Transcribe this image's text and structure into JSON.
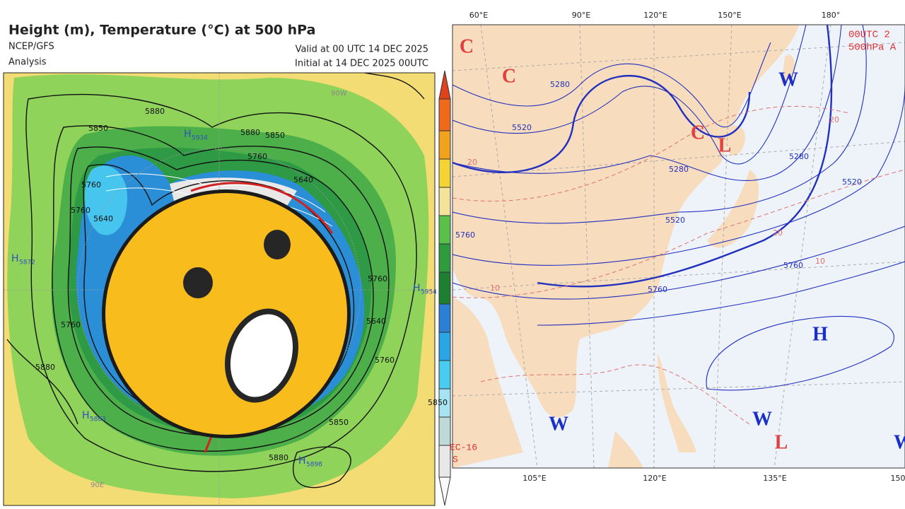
{
  "left_map": {
    "title": "Height (m), Temperature (°C) at 500 hPa",
    "source": "NCEP/GFS",
    "kind": "Analysis",
    "valid": "Valid at 00 UTC 14 DEC 2025",
    "initial": "Initial at 14 DEC 2025 00UTC",
    "high_symbol": "H",
    "highs": [
      "5934",
      "5872",
      "5954",
      "5863",
      "5898"
    ],
    "contour_labels": [
      "5880",
      "5850",
      "5880",
      "5850",
      "5760",
      "5640",
      "5760",
      "5640",
      "5760",
      "5760",
      "5640",
      "5760",
      "5760",
      "5850",
      "5880",
      "5880",
      "5850"
    ],
    "meridians": [
      "90W",
      "90E"
    ]
  },
  "right_map": {
    "header": [
      "00UTC 2",
      "500hPa A"
    ],
    "footer": [
      "EC-16",
      "S"
    ],
    "top_labels": [
      "60°E",
      "90°E",
      "120°E",
      "150°E",
      "180°"
    ],
    "bottom_labels": [
      "105°E",
      "120°E",
      "135°E",
      "150"
    ],
    "symbols": [
      "C",
      "C",
      "C",
      "L",
      "W",
      "W",
      "W",
      "L",
      "H",
      "W"
    ],
    "contour_labels": [
      "5280",
      "5520",
      "5280",
      "5520",
      "5280",
      "5520",
      "5760",
      "5760",
      "5760",
      "20",
      "20",
      "10",
      "10",
      "20"
    ]
  }
}
